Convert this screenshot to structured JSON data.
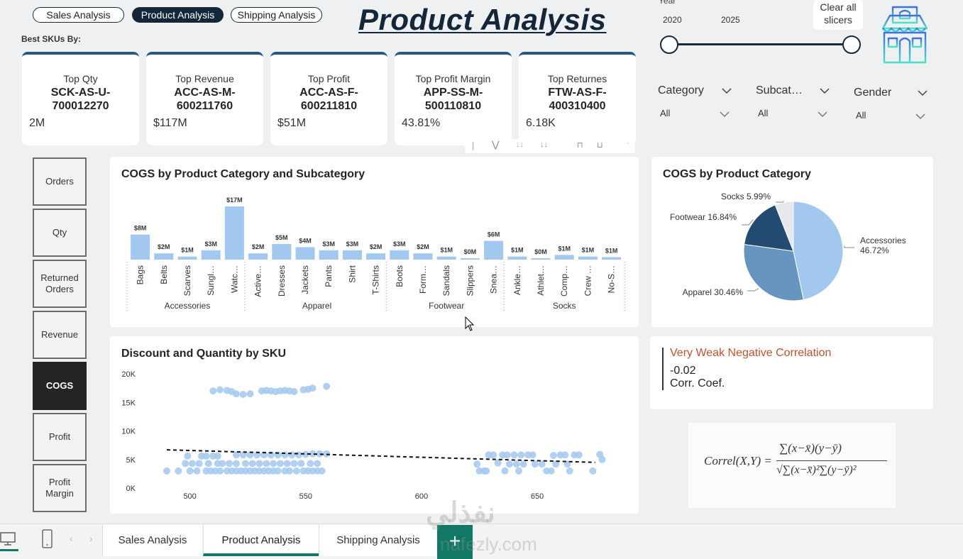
{
  "nav": {
    "pills": [
      {
        "label": "Sales Analysis",
        "active": false
      },
      {
        "label": "Product Analysis",
        "active": true
      },
      {
        "label": "Shipping Analysis",
        "active": false
      }
    ]
  },
  "header": {
    "title": "Product Analysis",
    "best_skus_label": "Best SKUs By:"
  },
  "kpis": [
    {
      "title": "Top Qty",
      "sku_line1": "SCK-AS-U-",
      "sku_line2": "700012270",
      "value": "2M"
    },
    {
      "title": "Top Revenue",
      "sku_line1": "ACC-AS-M-",
      "sku_line2": "600211760",
      "value": "$117M"
    },
    {
      "title": "Top Profit",
      "sku_line1": "ACC-AS-F-",
      "sku_line2": "600211810",
      "value": "$51M"
    },
    {
      "title": "Top Profit Margin",
      "sku_line1": "APP-SS-M-",
      "sku_line2": "500110810",
      "value": "43.81%"
    },
    {
      "title": "Top Returnes",
      "sku_line1": "FTW-AS-F-",
      "sku_line2": "400310400",
      "value": "6.18K"
    }
  ],
  "slicers": {
    "year": {
      "label": "Year",
      "start": "2020",
      "end": "2025",
      "range_fraction": [
        0,
        1
      ]
    },
    "clear_all_label_1": "Clear all",
    "clear_all_label_2": "slicers",
    "category": {
      "label": "Category",
      "value": "All"
    },
    "subcategory": {
      "label": "Subcat…",
      "value": "All"
    },
    "gender": {
      "label": "Gender",
      "value": "All"
    }
  },
  "measures": [
    {
      "label": "Orders",
      "active": false
    },
    {
      "label": "Qty",
      "active": false
    },
    {
      "label": "Returned Orders",
      "active": false
    },
    {
      "label": "Revenue",
      "active": false
    },
    {
      "label": "COGS",
      "active": true
    },
    {
      "label": "Profit",
      "active": false
    },
    {
      "label": "Profit Margin",
      "active": false
    }
  ],
  "correlation": {
    "title": "Very Weak Negative Correlation",
    "value": "-0.02",
    "label": "Corr. Coef.",
    "formula_lhs": "Correl(X,Y) =",
    "formula_num": "∑(x−x̄)(y−ȳ)",
    "formula_den": "√∑(x−x̄)²∑(y−ȳ)²"
  },
  "page_tabs": [
    {
      "label": "Sales Analysis",
      "active": false
    },
    {
      "label": "Product Analysis",
      "active": true
    },
    {
      "label": "Shipping Analysis",
      "active": false
    }
  ],
  "add_tab_label": "+",
  "watermark": {
    "line1": "نفذلي",
    "line2": "nafezly.com"
  },
  "colors": {
    "accent_dark": "#14273a",
    "bar": "#a3c8ef",
    "pie": [
      "#a3c8ef",
      "#6695bf",
      "#234a70",
      "#e5e9ed"
    ],
    "corr_title": "#c0532f",
    "tab_accent": "#117865"
  },
  "chart_data": [
    {
      "type": "bar",
      "title": "COGS by Product Category and Subcategory",
      "groups": [
        {
          "name": "Accessories",
          "categories": [
            "Bags",
            "Belts",
            "Scarves",
            "Sungl…",
            "Watc…"
          ],
          "values": [
            8,
            2,
            1,
            3,
            17
          ],
          "labels": [
            "$8M",
            "$2M",
            "$1M",
            "$3M",
            "$17M"
          ]
        },
        {
          "name": "Apparel",
          "categories": [
            "Active…",
            "Dresses",
            "Jackets",
            "Pants",
            "Shirt",
            "T-Shirts"
          ],
          "values": [
            2,
            5,
            4,
            3,
            3,
            2
          ],
          "labels": [
            "$2M",
            "$5M",
            "$4M",
            "$3M",
            "$3M",
            "$2M"
          ]
        },
        {
          "name": "Footwear",
          "categories": [
            "Boots",
            "Form…",
            "Sandals",
            "Slippers",
            "Snea…"
          ],
          "values": [
            3,
            2,
            1,
            0.2,
            6
          ],
          "labels": [
            "$3M",
            "$2M",
            "$1M",
            "$0M",
            "$6M"
          ]
        },
        {
          "name": "Socks",
          "categories": [
            "Ankle…",
            "Athlet…",
            "Comp…",
            "Crew …",
            "No-S…"
          ],
          "values": [
            1,
            0.3,
            1.5,
            1,
            0.8
          ],
          "labels": [
            "$1M",
            "$0M",
            "$1M",
            "$1M",
            "$1M"
          ]
        }
      ],
      "ylabel": "COGS ($M)",
      "ylim": [
        0,
        17
      ]
    },
    {
      "type": "pie",
      "title": "COGS by Product Category",
      "slices": [
        {
          "label": "Accessories",
          "value": 46.72,
          "text": "Accessories 46.72%"
        },
        {
          "label": "Apparel",
          "value": 30.46,
          "text": "Apparel 30.46%"
        },
        {
          "label": "Footwear",
          "value": 16.84,
          "text": "Footwear 16.84%"
        },
        {
          "label": "Socks",
          "value": 5.99,
          "text": "Socks 5.99%"
        }
      ]
    },
    {
      "type": "scatter",
      "title": "Discount and Quantity by SKU",
      "xlim": [
        490,
        680
      ],
      "ylim": [
        0,
        20000
      ],
      "xticks": [
        500,
        550,
        600,
        650
      ],
      "xtick_labels": [
        "500",
        "550",
        "600",
        "650"
      ],
      "yticks": [
        0,
        5000,
        10000,
        15000,
        20000
      ],
      "ytick_labels": [
        "0K",
        "5K",
        "10K",
        "15K",
        "20K"
      ],
      "trendline": {
        "x": [
          490,
          675
        ],
        "y": [
          6700,
          4500
        ]
      },
      "points": [
        [
          510,
          17000
        ],
        [
          513,
          17200
        ],
        [
          516,
          17100
        ],
        [
          518,
          16900
        ],
        [
          520,
          16500
        ],
        [
          523,
          16400
        ],
        [
          526,
          16500
        ],
        [
          531,
          17000
        ],
        [
          533,
          17100
        ],
        [
          535,
          17000
        ],
        [
          537,
          16900
        ],
        [
          539,
          17000
        ],
        [
          541,
          17100
        ],
        [
          543,
          17000
        ],
        [
          545,
          16900
        ],
        [
          549,
          17200
        ],
        [
          551,
          17300
        ],
        [
          553,
          17500
        ],
        [
          559,
          17800
        ],
        [
          495,
          3000
        ],
        [
          500,
          3000
        ],
        [
          503,
          3000
        ],
        [
          507,
          3000
        ],
        [
          509,
          3000
        ],
        [
          511,
          3000
        ],
        [
          513,
          3000
        ],
        [
          516,
          3000
        ],
        [
          518,
          3000
        ],
        [
          520,
          3000
        ],
        [
          522,
          3000
        ],
        [
          524,
          3000
        ],
        [
          526,
          3000
        ],
        [
          528,
          3000
        ],
        [
          530,
          3000
        ],
        [
          532,
          3000
        ],
        [
          534,
          3000
        ],
        [
          536,
          3000
        ],
        [
          538,
          3000
        ],
        [
          541,
          3000
        ],
        [
          543,
          3000
        ],
        [
          546,
          3000
        ],
        [
          549,
          3000
        ],
        [
          551,
          3000
        ],
        [
          553,
          3000
        ],
        [
          555,
          3000
        ],
        [
          557,
          3000
        ],
        [
          490,
          3000
        ],
        [
          498,
          4300
        ],
        [
          501,
          4300
        ],
        [
          504,
          4300
        ],
        [
          508,
          4300
        ],
        [
          512,
          4300
        ],
        [
          514,
          4300
        ],
        [
          517,
          4300
        ],
        [
          520,
          4300
        ],
        [
          524,
          4300
        ],
        [
          527,
          4300
        ],
        [
          530,
          4300
        ],
        [
          533,
          4300
        ],
        [
          536,
          4300
        ],
        [
          539,
          4300
        ],
        [
          542,
          4300
        ],
        [
          545,
          4300
        ],
        [
          548,
          4300
        ],
        [
          552,
          4300
        ],
        [
          555,
          4300
        ],
        [
          499,
          5600
        ],
        [
          505,
          5600
        ],
        [
          507,
          5600
        ],
        [
          510,
          5600
        ],
        [
          512,
          5600
        ],
        [
          520,
          5800
        ],
        [
          523,
          5800
        ],
        [
          526,
          5800
        ],
        [
          529,
          5800
        ],
        [
          532,
          5800
        ],
        [
          535,
          5800
        ],
        [
          538,
          5800
        ],
        [
          541,
          5800
        ],
        [
          544,
          5800
        ],
        [
          547,
          5800
        ],
        [
          550,
          5900
        ],
        [
          553,
          6000
        ],
        [
          556,
          6000
        ],
        [
          559,
          6000
        ],
        [
          624,
          4200
        ],
        [
          625,
          3000
        ],
        [
          627,
          3000
        ],
        [
          628,
          3000
        ],
        [
          629,
          5800
        ],
        [
          631,
          5800
        ],
        [
          633,
          4400
        ],
        [
          635,
          5800
        ],
        [
          636,
          3000
        ],
        [
          637,
          5800
        ],
        [
          638,
          4200
        ],
        [
          640,
          5800
        ],
        [
          641,
          4200
        ],
        [
          642,
          3000
        ],
        [
          643,
          5800
        ],
        [
          644,
          4200
        ],
        [
          646,
          5800
        ],
        [
          648,
          5800
        ],
        [
          649,
          4200
        ],
        [
          652,
          4200
        ],
        [
          654,
          3000
        ],
        [
          656,
          3000
        ],
        [
          657,
          5700
        ],
        [
          658,
          4200
        ],
        [
          660,
          5800
        ],
        [
          662,
          5800
        ],
        [
          663,
          4200
        ],
        [
          664,
          3000
        ],
        [
          666,
          5800
        ],
        [
          668,
          5800
        ],
        [
          674,
          3000
        ],
        [
          677,
          5900
        ],
        [
          678,
          5000
        ]
      ]
    }
  ]
}
